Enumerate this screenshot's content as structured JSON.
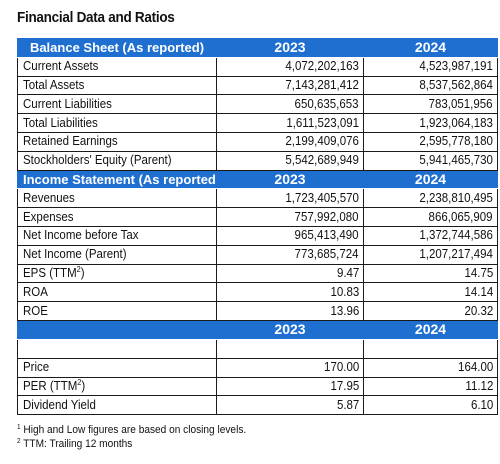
{
  "title": "Financial Data and Ratios",
  "balance_sheet": {
    "header": "Balance Sheet (As reported)",
    "years": [
      "2023",
      "2024"
    ],
    "rows": [
      {
        "label": "Current Assets",
        "y2023": "4,072,202,163",
        "y2024": "4,523,987,191"
      },
      {
        "label": "Total Assets",
        "y2023": "7,143,281,412",
        "y2024": "8,537,562,864"
      },
      {
        "label": "Current Liabilities",
        "y2023": "650,635,653",
        "y2024": "783,051,956"
      },
      {
        "label": "Total Liabilities",
        "y2023": "1,611,523,091",
        "y2024": "1,923,064,183"
      },
      {
        "label": "Retained Earnings",
        "y2023": "2,199,409,076",
        "y2024": "2,595,778,180"
      },
      {
        "label": "Stockholders' Equity (Parent)",
        "y2023": "5,542,689,949",
        "y2024": "5,941,465,730"
      }
    ]
  },
  "income_statement": {
    "header": "Income Statement (As reported)",
    "years": [
      "2023",
      "2024"
    ],
    "rows": [
      {
        "label": "Revenues",
        "y2023": "1,723,405,570",
        "y2024": "2,238,810,495"
      },
      {
        "label": "Expenses",
        "y2023": "757,992,080",
        "y2024": "866,065,909"
      },
      {
        "label": "Net Income before Tax",
        "y2023": "965,413,490",
        "y2024": "1,372,744,586"
      },
      {
        "label": "Net Income (Parent)",
        "y2023": "773,685,724",
        "y2024": "1,207,217,494"
      },
      {
        "label": "EPS (TTM",
        "sup": "2",
        "label_end": ")",
        "y2023": "9.47",
        "y2024": "14.75"
      },
      {
        "label": "ROA",
        "y2023": "10.83",
        "y2024": "14.14"
      },
      {
        "label": "ROE",
        "y2023": "13.96",
        "y2024": "20.32"
      }
    ]
  },
  "market": {
    "years": [
      "2023",
      "2024"
    ],
    "rows": [
      {
        "label": "Price",
        "y2023": "170.00",
        "y2024": "164.00"
      },
      {
        "label": "PER (TTM",
        "sup": "2",
        "label_end": ")",
        "y2023": "17.95",
        "y2024": "11.12"
      },
      {
        "label": "Dividend Yield",
        "y2023": "5.87",
        "y2024": "6.10"
      }
    ]
  },
  "notes": [
    {
      "mark": "1",
      "text": "High and Low figures are based on closing levels."
    },
    {
      "mark": "2",
      "text": "TTM: Trailing 12 months"
    }
  ]
}
